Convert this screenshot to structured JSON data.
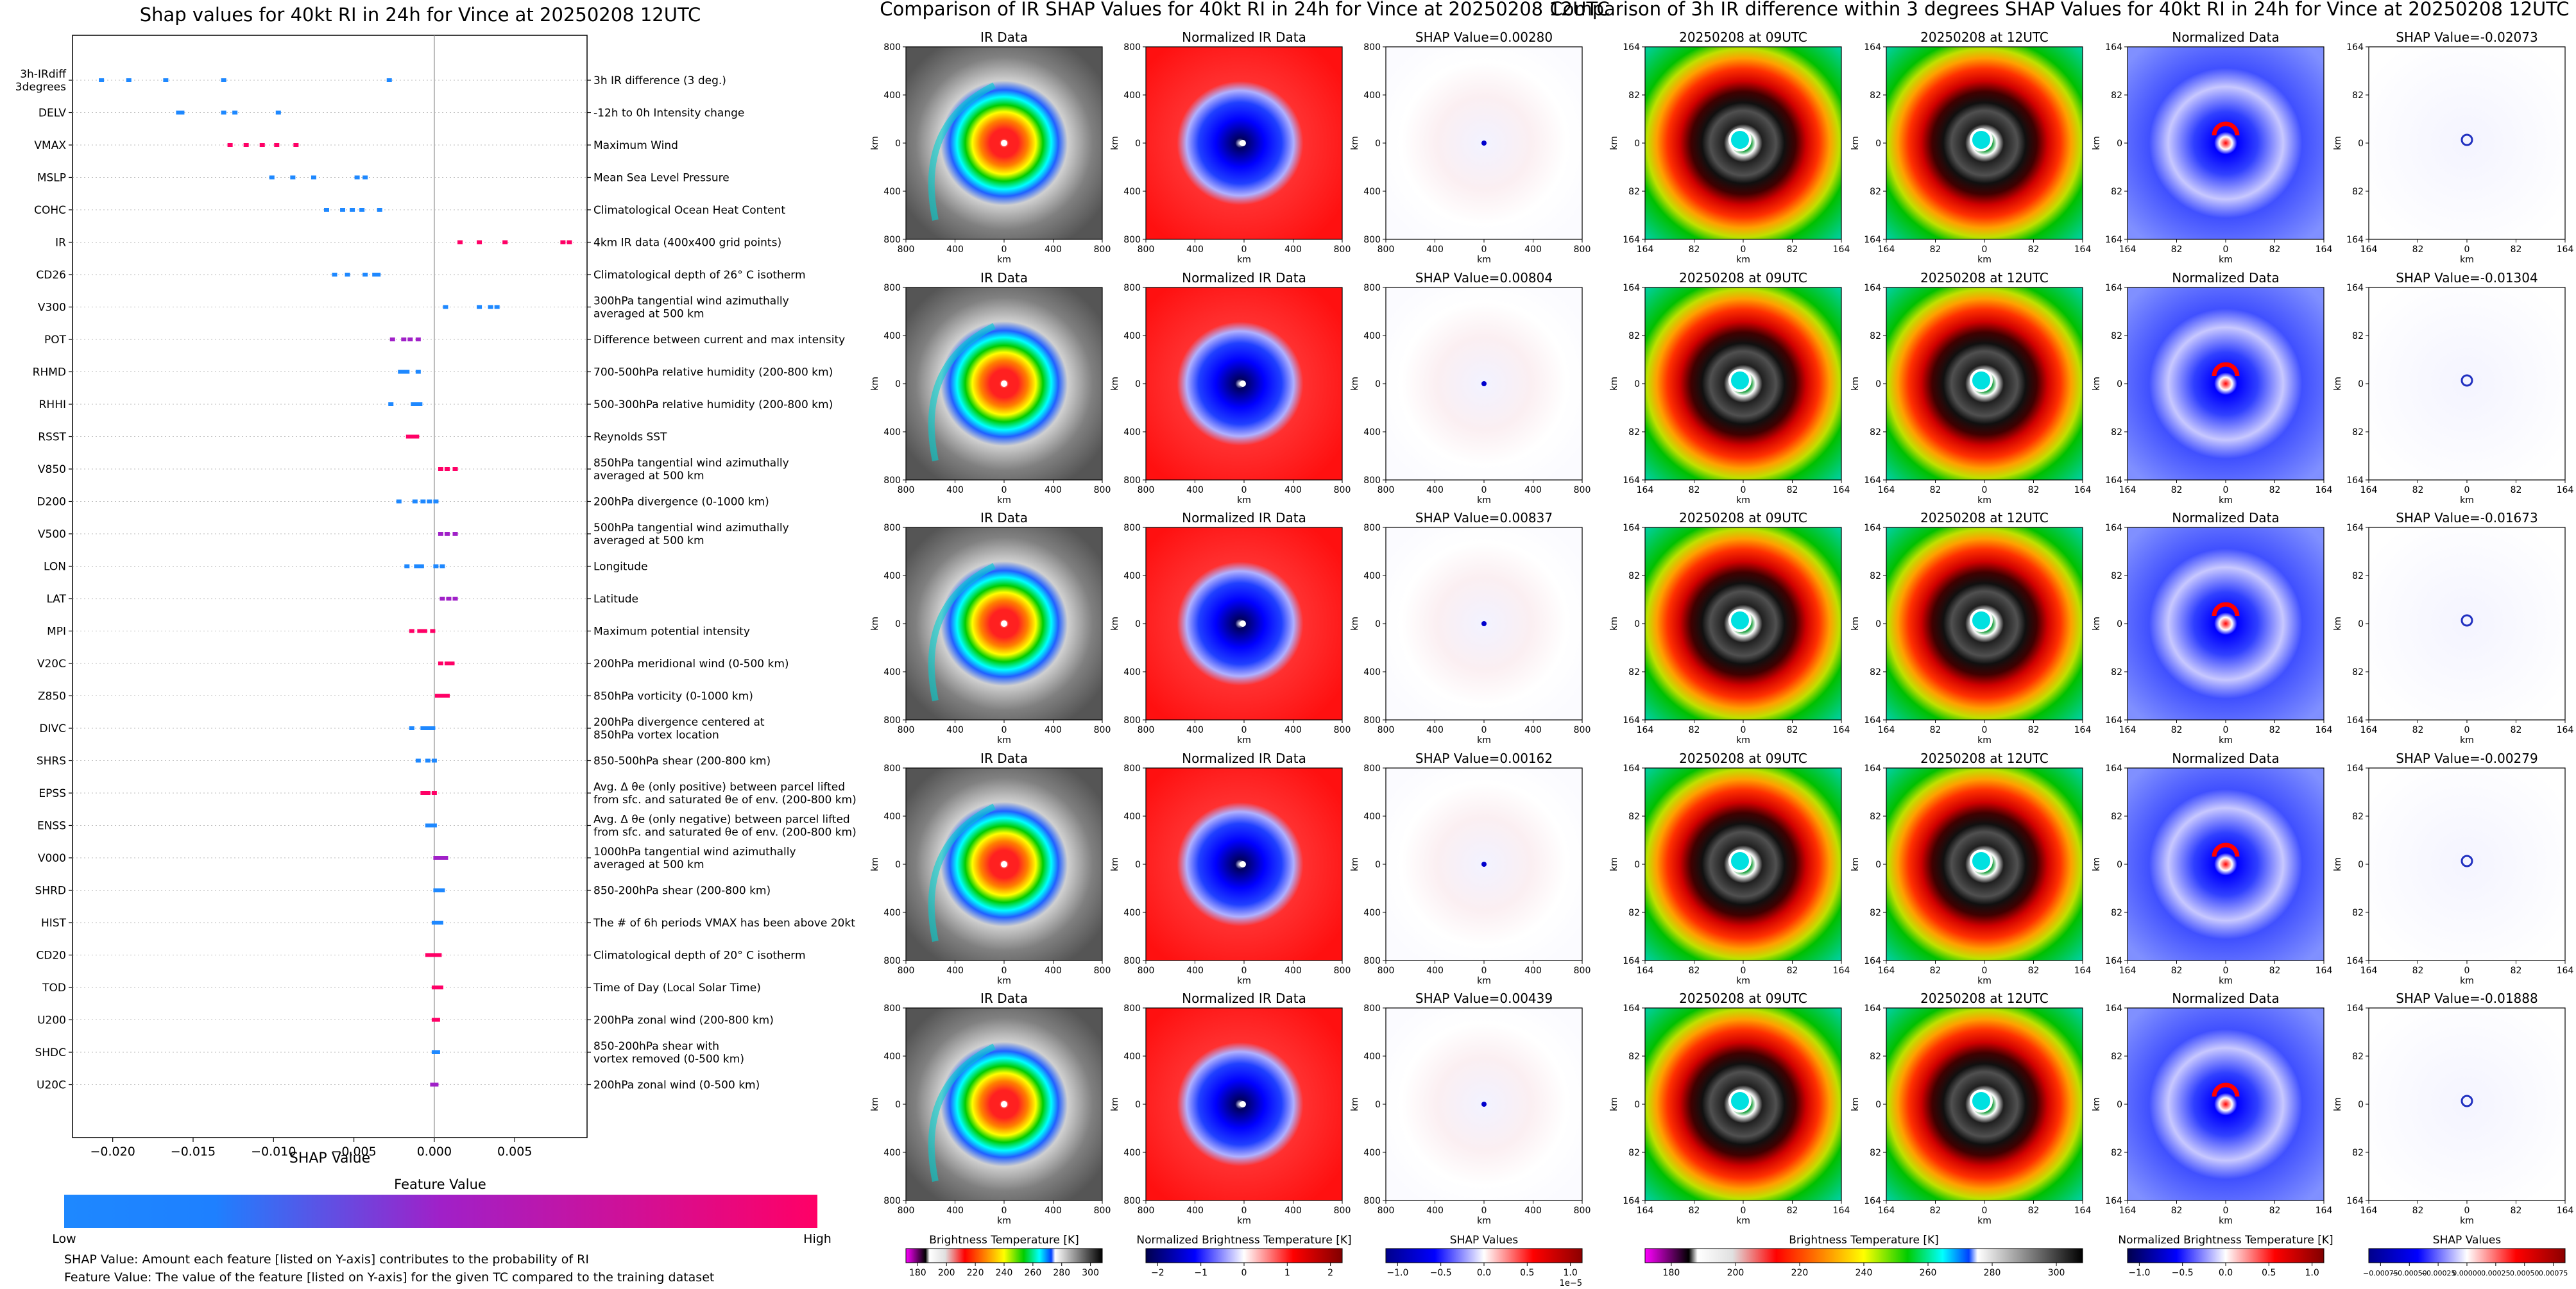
{
  "colors": {
    "low": "#1e88ff",
    "mid": "#a020c8",
    "high": "#ff0066",
    "ir_stops": [
      "#ff00ff",
      "#ffffff",
      "#e8e8e8",
      "#ff2020",
      "#ff8000",
      "#ffff00",
      "#00cc00",
      "#00ffff",
      "#0040ff",
      "#ffffff",
      "#808080",
      "#202020"
    ],
    "bwr_stops": [
      "#00008b",
      "#0000ff",
      "#ffffff",
      "#ff0000",
      "#8b0000"
    ],
    "seismic_stops": [
      "#00004c",
      "#0000ff",
      "#ffffff",
      "#ff0000",
      "#800000"
    ]
  },
  "shap_panel": {
    "title": "Shap values for 40kt RI in 24h for Vince at 20250208 12UTC",
    "xlabel": "SHAP Value",
    "colorbar_title": "Feature Value",
    "colorbar_low": "Low",
    "colorbar_high": "High",
    "note1": "SHAP Value: Amount each feature [listed on Y-axis] contributes to the probability of RI",
    "note2": "Feature Value: The value of the feature [listed on Y-axis] for the given TC compared to the training dataset"
  },
  "ir_section": {
    "title": "Comparison of IR SHAP Values for 40kt RI in 24h for Vince at 20250208 12UTC",
    "col_titles": [
      "IR Data",
      "Normalized IR Data"
    ],
    "shap_titles": [
      "SHAP Value=0.00280",
      "SHAP Value=0.00804",
      "SHAP Value=0.00837",
      "SHAP Value=0.00162",
      "SHAP Value=0.00439"
    ],
    "axis_unit": "km",
    "ticks": [
      "800",
      "400",
      "0",
      "400",
      "800"
    ],
    "cb_bt_label": "Brightness Temperature [K]",
    "cb_bt_ticks": [
      "180",
      "200",
      "220",
      "240",
      "260",
      "280",
      "300"
    ],
    "cb_norm_label": "Normalized Brightness Temperature [K]",
    "cb_norm_ticks": [
      "−2",
      "−1",
      "0",
      "1",
      "2"
    ],
    "cb_shap_label": "SHAP Values",
    "cb_shap_ticks": [
      "−1.0",
      "−0.5",
      "0.0",
      "0.5",
      "1.0"
    ],
    "cb_shap_exp": "1e−5"
  },
  "diff_section": {
    "title": "Comparison of 3h IR difference within 3 degrees SHAP Values for 40kt RI in 24h for Vince at 20250208 12UTC",
    "col_titles": [
      "20250208 at 09UTC",
      "20250208 at 12UTC",
      "Normalized Data"
    ],
    "shap_titles": [
      "SHAP Value=-0.02073",
      "SHAP Value=-0.01304",
      "SHAP Value=-0.01673",
      "SHAP Value=-0.00279",
      "SHAP Value=-0.01888"
    ],
    "axis_unit": "km",
    "ticks": [
      "164",
      "82",
      "0",
      "82",
      "164"
    ],
    "cb_bt_label": "Brightness Temperature [K]",
    "cb_bt_ticks": [
      "180",
      "200",
      "220",
      "240",
      "260",
      "280",
      "300"
    ],
    "cb_norm_label": "Normalized Brightness Temperature [K]",
    "cb_norm_ticks": [
      "−1.0",
      "−0.5",
      "0.0",
      "0.5",
      "1.0"
    ],
    "cb_shap_label": "SHAP Values",
    "cb_shap_ticks": [
      "−0.00075",
      "−0.00050",
      "−0.00025",
      "0.00000",
      "0.00025",
      "0.00050",
      "0.00075"
    ]
  },
  "chart_data": [
    {
      "type": "scatter",
      "title": "Shap values for 40kt RI in 24h for Vince at 20250208 12UTC",
      "xlabel": "SHAP Value",
      "xlim": [
        -0.0225,
        0.0095
      ],
      "xticks": [
        "−0.020",
        "−0.015",
        "−0.010",
        "−0.005",
        "0.000",
        "0.005"
      ],
      "xtick_values": [
        -0.02,
        -0.015,
        -0.01,
        -0.005,
        0.0,
        0.005
      ],
      "features": [
        {
          "name": "3h-IRdiff\n3degrees",
          "desc": "3h IR difference (3 deg.)",
          "values": [
            -0.0207,
            -0.019,
            -0.0167,
            -0.0131,
            -0.0028
          ],
          "color": "low"
        },
        {
          "name": "DELV",
          "desc": "-12h to 0h Intensity change",
          "values": [
            -0.0159,
            -0.0157,
            -0.0131,
            -0.0124,
            -0.0097
          ],
          "color": "low"
        },
        {
          "name": "VMAX",
          "desc": "Maximum Wind",
          "values": [
            -0.0127,
            -0.0117,
            -0.0107,
            -0.0098,
            -0.0086
          ],
          "color": "high"
        },
        {
          "name": "MSLP",
          "desc": "Mean Sea Level Pressure",
          "values": [
            -0.0101,
            -0.0088,
            -0.0075,
            -0.0048,
            -0.0043
          ],
          "color": "low"
        },
        {
          "name": "COHC",
          "desc": "Climatological Ocean Heat Content",
          "values": [
            -0.0067,
            -0.0057,
            -0.0051,
            -0.0045,
            -0.0034
          ],
          "color": "low"
        },
        {
          "name": "IR",
          "desc": "4km IR data (400x400 grid points)",
          "values": [
            0.0016,
            0.0028,
            0.0044,
            0.008,
            0.0084
          ],
          "color": "high"
        },
        {
          "name": "CD26",
          "desc": "Climatological depth of 26° C isotherm",
          "values": [
            -0.0062,
            -0.0054,
            -0.0043,
            -0.0037,
            -0.0035
          ],
          "color": "low"
        },
        {
          "name": "V300",
          "desc": "300hPa tangential wind azimuthally\naveraged at 500 km",
          "values": [
            0.0007,
            0.0028,
            0.0035,
            0.0039
          ],
          "color": "low"
        },
        {
          "name": "POT",
          "desc": "Difference between current and max intensity",
          "values": [
            -0.0026,
            -0.0019,
            -0.0015,
            -0.001
          ],
          "color": "mid"
        },
        {
          "name": "RHMD",
          "desc": "700-500hPa relative humidity (200-800 km)",
          "values": [
            -0.0021,
            -0.0019,
            -0.0017,
            -0.001
          ],
          "color": "low"
        },
        {
          "name": "RHHI",
          "desc": "500-300hPa relative humidity (200-800 km)",
          "values": [
            -0.0027,
            -0.0013,
            -0.0011,
            -0.0009
          ],
          "color": "low"
        },
        {
          "name": "RSST",
          "desc": "Reynolds SST",
          "values": [
            -0.0016,
            -0.0013,
            -0.0011
          ],
          "color": "high"
        },
        {
          "name": "V850",
          "desc": "850hPa tangential wind azimuthally\naveraged at 500 km",
          "values": [
            0.0004,
            0.0008,
            0.0013
          ],
          "color": "high"
        },
        {
          "name": "D200",
          "desc": "200hPa divergence (0-1000 km)",
          "values": [
            -0.0022,
            -0.0012,
            -0.0007,
            -0.0003,
            0.0001
          ],
          "color": "low"
        },
        {
          "name": "V500",
          "desc": "500hPa tangential wind azimuthally\naveraged at 500 km",
          "values": [
            0.0004,
            0.0008,
            0.0013
          ],
          "color": "mid"
        },
        {
          "name": "LON",
          "desc": "Longitude",
          "values": [
            -0.0017,
            -0.0011,
            -0.0008,
            0.0001,
            0.0005
          ],
          "color": "low"
        },
        {
          "name": "LAT",
          "desc": "Latitude",
          "values": [
            0.0005,
            0.0009,
            0.0013
          ],
          "color": "mid"
        },
        {
          "name": "MPI",
          "desc": "Maximum potential intensity",
          "values": [
            -0.0014,
            -0.0009,
            -0.0006,
            -0.0001
          ],
          "color": "high"
        },
        {
          "name": "V20C",
          "desc": "200hPa meridional wind (0-500 km)",
          "values": [
            0.0004,
            0.0008,
            0.0011
          ],
          "color": "high"
        },
        {
          "name": "Z850",
          "desc": "850hPa vorticity (0-1000 km)",
          "values": [
            0.0002,
            0.0005,
            0.0008
          ],
          "color": "high"
        },
        {
          "name": "DIVC",
          "desc": "200hPa divergence centered at\n850hPa vortex location",
          "values": [
            -0.0014,
            -0.0007,
            -0.0004,
            -0.0001
          ],
          "color": "low"
        },
        {
          "name": "SHRS",
          "desc": "850-500hPa shear (200-800 km)",
          "values": [
            -0.001,
            -0.0004,
            0.0
          ],
          "color": "low"
        },
        {
          "name": "EPSS",
          "desc": "Avg. Δ θe (only positive) between parcel lifted\nfrom sfc. and saturated θe of env. (200-800 km)",
          "values": [
            -0.0007,
            -0.0004,
            0.0
          ],
          "color": "high"
        },
        {
          "name": "ENSS",
          "desc": "Avg. Δ θe (only negative) between parcel lifted\nfrom sfc. and saturated θe of env. (200-800 km)",
          "values": [
            -0.0004,
            -0.0002,
            0.0
          ],
          "color": "low"
        },
        {
          "name": "V000",
          "desc": "1000hPa tangential wind azimuthally\naveraged at 500 km",
          "values": [
            0.0001,
            0.0004,
            0.0007
          ],
          "color": "mid"
        },
        {
          "name": "SHRD",
          "desc": "850-200hPa shear (200-800 km)",
          "values": [
            0.0001,
            0.0003,
            0.0005
          ],
          "color": "low"
        },
        {
          "name": "HIST",
          "desc": "The # of 6h periods VMAX has been above 20kt",
          "values": [
            0.0,
            0.0002,
            0.0004
          ],
          "color": "low"
        },
        {
          "name": "CD20",
          "desc": "Climatological depth of 20° C isotherm",
          "values": [
            -0.0004,
            -0.0001,
            0.0002,
            0.0003
          ],
          "color": "high"
        },
        {
          "name": "TOD",
          "desc": "Time of Day (Local Solar Time)",
          "values": [
            0.0,
            0.0002,
            0.0004
          ],
          "color": "high"
        },
        {
          "name": "U200",
          "desc": "200hPa zonal wind (200-800 km)",
          "values": [
            0.0,
            0.0002
          ],
          "color": "high"
        },
        {
          "name": "SHDC",
          "desc": "850-200hPa shear with\nvortex removed (0-500 km)",
          "values": [
            0.0,
            0.0002
          ],
          "color": "low"
        },
        {
          "name": "U20C",
          "desc": "200hPa zonal wind (0-500 km)",
          "values": [
            -0.0001,
            0.0001
          ],
          "color": "mid"
        }
      ]
    }
  ]
}
